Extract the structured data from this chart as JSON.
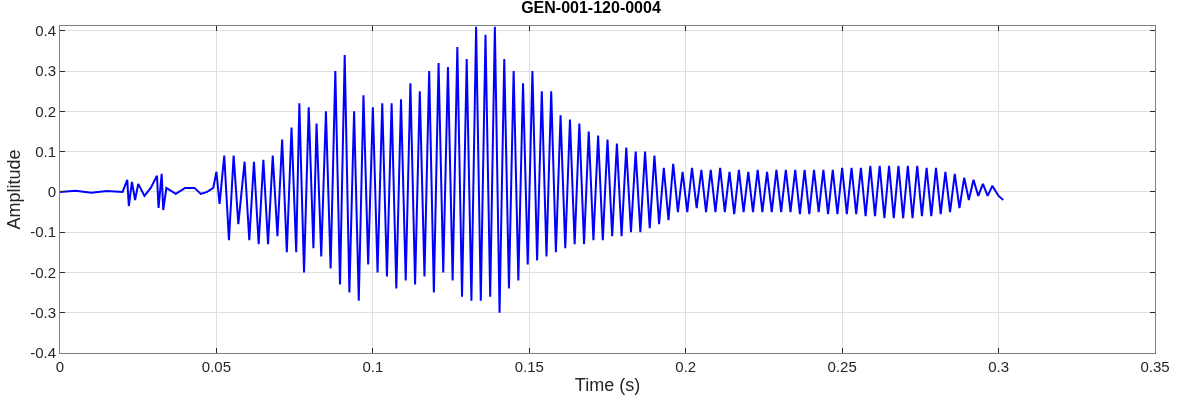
{
  "chart_data": {
    "type": "line",
    "title": "GEN-001-120-0004",
    "xlabel": "Time (s)",
    "ylabel": "Amplitude",
    "xlim": [
      0,
      0.35
    ],
    "ylim": [
      -0.4,
      0.412
    ],
    "xticks": [
      0,
      0.05,
      0.1,
      0.15,
      0.2,
      0.25,
      0.3,
      0.35
    ],
    "yticks": [
      -0.4,
      -0.3,
      -0.2,
      -0.1,
      0,
      0.1,
      0.2,
      0.3,
      0.4
    ],
    "grid": true,
    "marker": "none",
    "line_style": "solid",
    "series": [
      {
        "color": "#0000ff",
        "x": [
          0,
          0.005,
          0.01,
          0.015,
          0.02,
          0.0215,
          0.022,
          0.023,
          0.024,
          0.025,
          0.027,
          0.029,
          0.031,
          0.0315,
          0.0325,
          0.033,
          0.034,
          0.037,
          0.04,
          0.043,
          0.045,
          0.047,
          0.049,
          0.05,
          0.051,
          0.0525,
          0.054,
          0.0555,
          0.057,
          0.059,
          0.0605,
          0.062,
          0.0635,
          0.065,
          0.0665,
          0.068,
          0.0695,
          0.071,
          0.0725,
          0.074,
          0.0755,
          0.0765,
          0.078,
          0.0795,
          0.081,
          0.082,
          0.0835,
          0.085,
          0.0865,
          0.088,
          0.0895,
          0.091,
          0.0925,
          0.094,
          0.0955,
          0.097,
          0.0985,
          0.1,
          0.1015,
          0.103,
          0.1045,
          0.106,
          0.1075,
          0.109,
          0.1105,
          0.112,
          0.1135,
          0.115,
          0.1165,
          0.118,
          0.1195,
          0.121,
          0.1225,
          0.124,
          0.1255,
          0.127,
          0.1285,
          0.13,
          0.1315,
          0.133,
          0.1345,
          0.136,
          0.1375,
          0.139,
          0.1405,
          0.142,
          0.1435,
          0.145,
          0.1465,
          0.148,
          0.1495,
          0.151,
          0.1525,
          0.154,
          0.1555,
          0.157,
          0.1585,
          0.16,
          0.1615,
          0.163,
          0.1645,
          0.166,
          0.1675,
          0.169,
          0.1705,
          0.172,
          0.1735,
          0.175,
          0.1765,
          0.178,
          0.1795,
          0.181,
          0.1825,
          0.184,
          0.1855,
          0.187,
          0.1885,
          0.19,
          0.1915,
          0.193,
          0.1945,
          0.196,
          0.1975,
          0.199,
          0.2005,
          0.202,
          0.2035,
          0.205,
          0.2065,
          0.208,
          0.2095,
          0.211,
          0.2125,
          0.214,
          0.2155,
          0.217,
          0.2185,
          0.22,
          0.2215,
          0.223,
          0.2245,
          0.226,
          0.2275,
          0.229,
          0.2305,
          0.232,
          0.2335,
          0.235,
          0.2365,
          0.238,
          0.2395,
          0.241,
          0.2425,
          0.244,
          0.2455,
          0.247,
          0.2485,
          0.25,
          0.2515,
          0.253,
          0.2545,
          0.256,
          0.2575,
          0.259,
          0.2605,
          0.262,
          0.2635,
          0.265,
          0.2665,
          0.268,
          0.2695,
          0.271,
          0.2725,
          0.274,
          0.2755,
          0.277,
          0.2785,
          0.28,
          0.2815,
          0.283,
          0.2845,
          0.286,
          0.2875,
          0.289,
          0.2905,
          0.292,
          0.2935,
          0.295,
          0.2965,
          0.298,
          0.3,
          0.3015
        ],
        "values": [
          0,
          0.003,
          -0.002,
          0.002,
          0,
          0.03,
          -0.035,
          0.025,
          -0.02,
          0.02,
          -0.01,
          0.01,
          0.04,
          -0.04,
          0.045,
          -0.045,
          0.01,
          -0.005,
          0.01,
          0.01,
          -0.005,
          0,
          0.01,
          0.05,
          -0.03,
          0.09,
          -0.12,
          0.09,
          -0.08,
          0.075,
          -0.12,
          0.075,
          -0.13,
          0.08,
          -0.13,
          0.09,
          -0.11,
          0.13,
          -0.15,
          0.16,
          -0.15,
          0.22,
          -0.2,
          0.21,
          -0.14,
          0.17,
          -0.16,
          0.2,
          -0.19,
          0.3,
          -0.23,
          0.34,
          -0.25,
          0.2,
          -0.27,
          0.24,
          -0.18,
          0.21,
          -0.2,
          0.22,
          -0.21,
          0.22,
          -0.24,
          0.23,
          -0.22,
          0.27,
          -0.23,
          0.25,
          -0.21,
          0.3,
          -0.25,
          0.32,
          -0.2,
          0.31,
          -0.22,
          0.36,
          -0.26,
          0.33,
          -0.27,
          0.41,
          -0.27,
          0.39,
          -0.26,
          0.41,
          -0.3,
          0.33,
          -0.24,
          0.3,
          -0.22,
          0.27,
          -0.18,
          0.3,
          -0.17,
          0.25,
          -0.16,
          0.25,
          -0.15,
          0.19,
          -0.14,
          0.18,
          -0.13,
          0.17,
          -0.13,
          0.15,
          -0.12,
          0.14,
          -0.12,
          0.13,
          -0.11,
          0.12,
          -0.11,
          0.11,
          -0.1,
          0.1,
          -0.1,
          0.1,
          -0.09,
          0.09,
          -0.08,
          0.06,
          -0.07,
          0.07,
          -0.05,
          0.05,
          -0.05,
          0.06,
          -0.04,
          0.055,
          -0.05,
          0.055,
          -0.05,
          0.06,
          -0.05,
          0.05,
          -0.055,
          0.055,
          -0.05,
          0.05,
          -0.05,
          0.055,
          -0.05,
          0.05,
          -0.05,
          0.055,
          -0.05,
          0.055,
          -0.05,
          0.055,
          -0.055,
          0.055,
          -0.055,
          0.055,
          -0.05,
          0.055,
          -0.055,
          0.055,
          -0.055,
          0.06,
          -0.055,
          0.06,
          -0.055,
          0.06,
          -0.06,
          0.065,
          -0.06,
          0.065,
          -0.065,
          0.065,
          -0.065,
          0.065,
          -0.065,
          0.065,
          -0.065,
          0.065,
          -0.06,
          0.06,
          -0.06,
          0.06,
          -0.055,
          0.05,
          -0.05,
          0.045,
          -0.04,
          0.035,
          -0.02,
          0.03,
          -0.01,
          0.02,
          -0.01,
          0.015,
          -0.01,
          -0.02
        ]
      }
    ]
  }
}
